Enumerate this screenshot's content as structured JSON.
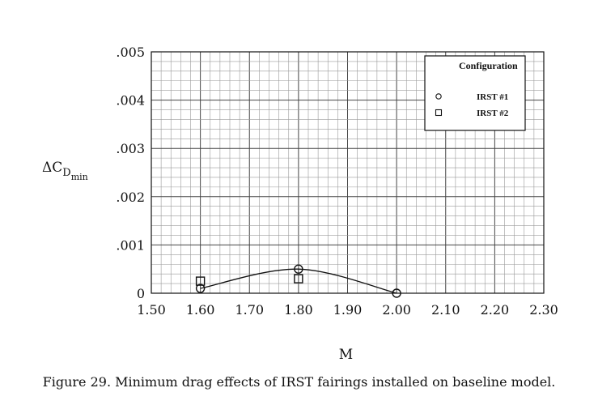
{
  "chart_data": {
    "type": "scatter",
    "xlabel": "M",
    "ylabel": "ΔC",
    "ylabel_sub": "D",
    "ylabel_subsub": "min",
    "xlim": [
      1.5,
      2.3
    ],
    "ylim": [
      0,
      0.005
    ],
    "x_ticks": [
      1.5,
      1.6,
      1.7,
      1.8,
      1.9,
      2.0,
      2.1,
      2.2,
      2.3
    ],
    "x_tick_labels": [
      "1.50",
      "1.60",
      "1.70",
      "1.80",
      "1.90",
      "2.00",
      "2.10",
      "2.20",
      "2.30"
    ],
    "y_ticks": [
      0,
      0.001,
      0.002,
      0.003,
      0.004,
      0.005
    ],
    "y_tick_labels": [
      "0",
      ".001",
      ".002",
      ".003",
      ".004",
      ".005"
    ],
    "grid": true,
    "legend": {
      "title": "Configuration",
      "placement": "top-right"
    },
    "series": [
      {
        "name": "IRST #1",
        "marker": "circle",
        "x": [
          1.6,
          1.8,
          2.0
        ],
        "y": [
          0.0001,
          0.0005,
          0.0
        ],
        "fit_curve": true
      },
      {
        "name": "IRST #2",
        "marker": "square",
        "x": [
          1.6,
          1.8
        ],
        "y": [
          0.00025,
          0.0003
        ],
        "fit_curve": false
      }
    ]
  },
  "caption": "Figure 29.  Minimum drag effects of IRST fairings installed on baseline model."
}
